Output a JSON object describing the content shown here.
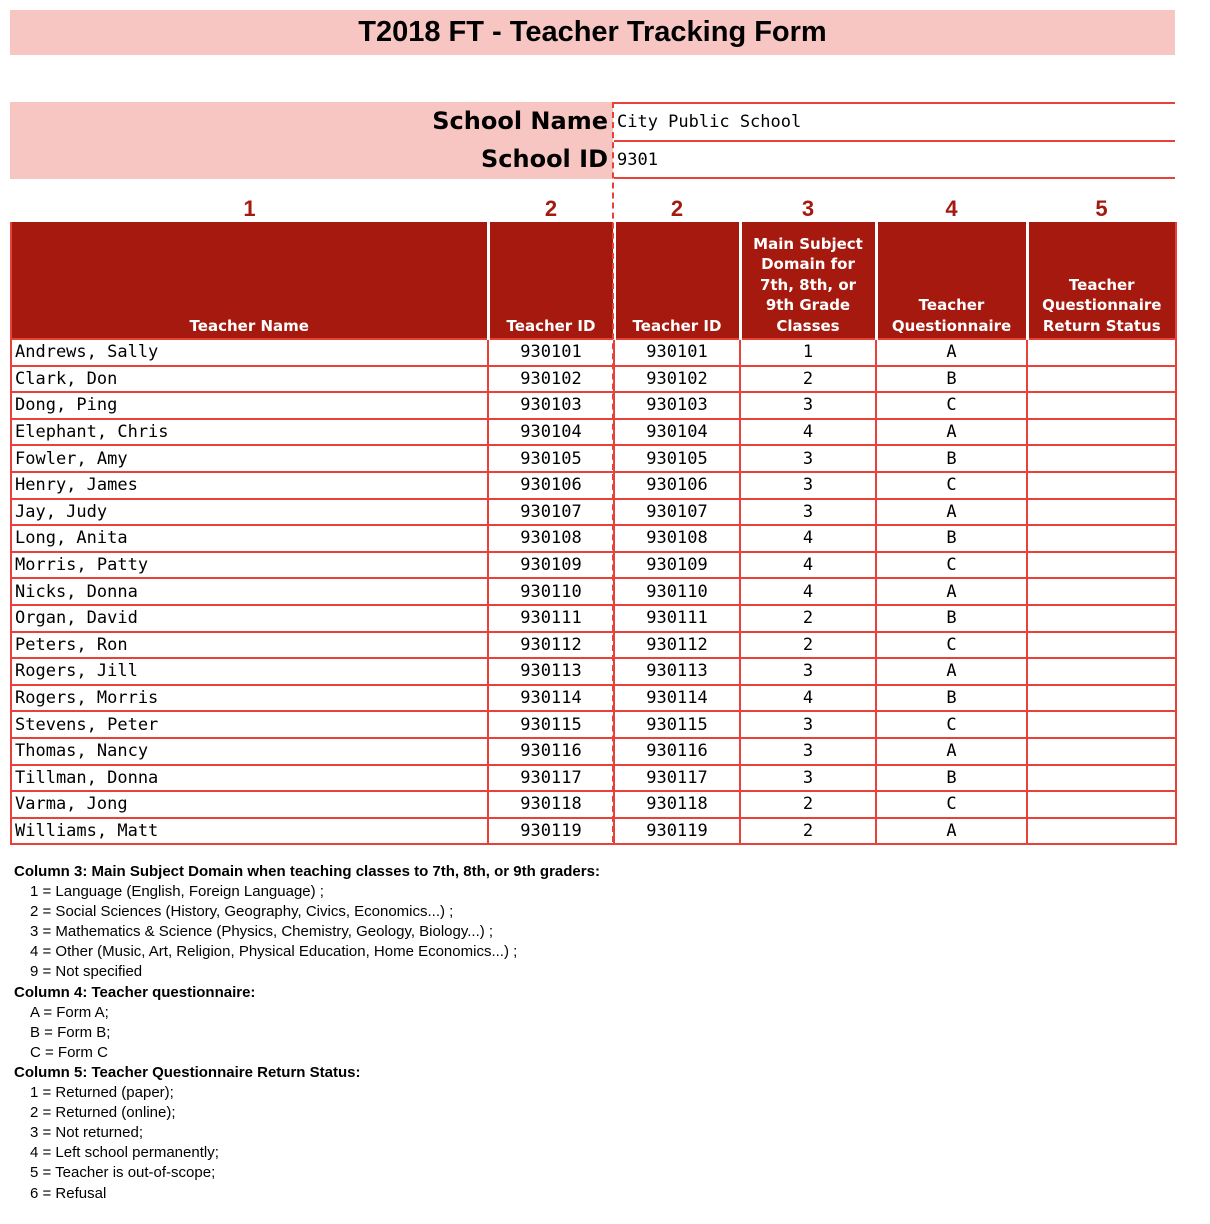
{
  "title": "T2018 FT - Teacher Tracking Form",
  "school": {
    "name_label": "School Name",
    "name_value": "City Public School",
    "id_label": "School ID",
    "id_value": "9301"
  },
  "column_numbers": [
    "1",
    "2",
    "2",
    "3",
    "4",
    "5"
  ],
  "headers": [
    "Teacher Name",
    "Teacher ID",
    "Teacher ID",
    "Main Subject Domain for 7th, 8th, or 9th Grade Classes",
    "Teacher Questionnaire",
    "Teacher Questionnaire Return Status"
  ],
  "rows": [
    [
      "Andrews, Sally",
      "930101",
      "930101",
      "1",
      "A",
      ""
    ],
    [
      "Clark, Don",
      "930102",
      "930102",
      "2",
      "B",
      ""
    ],
    [
      "Dong, Ping",
      "930103",
      "930103",
      "3",
      "C",
      ""
    ],
    [
      "Elephant, Chris",
      "930104",
      "930104",
      "4",
      "A",
      ""
    ],
    [
      "Fowler, Amy",
      "930105",
      "930105",
      "3",
      "B",
      ""
    ],
    [
      "Henry, James",
      "930106",
      "930106",
      "3",
      "C",
      ""
    ],
    [
      "Jay, Judy",
      "930107",
      "930107",
      "3",
      "A",
      ""
    ],
    [
      "Long, Anita",
      "930108",
      "930108",
      "4",
      "B",
      ""
    ],
    [
      "Morris, Patty",
      "930109",
      "930109",
      "4",
      "C",
      ""
    ],
    [
      "Nicks, Donna",
      "930110",
      "930110",
      "4",
      "A",
      ""
    ],
    [
      "Organ, David",
      "930111",
      "930111",
      "2",
      "B",
      ""
    ],
    [
      "Peters, Ron",
      "930112",
      "930112",
      "2",
      "C",
      ""
    ],
    [
      "Rogers, Jill",
      "930113",
      "930113",
      "3",
      "A",
      ""
    ],
    [
      "Rogers, Morris",
      "930114",
      "930114",
      "4",
      "B",
      ""
    ],
    [
      "Stevens, Peter",
      "930115",
      "930115",
      "3",
      "C",
      ""
    ],
    [
      "Thomas, Nancy",
      "930116",
      "930116",
      "3",
      "A",
      ""
    ],
    [
      "Tillman, Donna",
      "930117",
      "930117",
      "3",
      "B",
      ""
    ],
    [
      "Varma, Jong",
      "930118",
      "930118",
      "2",
      "C",
      ""
    ],
    [
      "Williams, Matt",
      "930119",
      "930119",
      "2",
      "A",
      ""
    ]
  ],
  "legend": [
    {
      "heading": "Column 3: Main Subject Domain when teaching classes to 7th, 8th, or 9th graders:",
      "items": [
        "1 = Language (English, Foreign Language) ;",
        "2 = Social Sciences (History, Geography, Civics, Economics...) ;",
        "3 = Mathematics & Science (Physics, Chemistry, Geology, Biology...) ;",
        "4 = Other (Music, Art, Religion, Physical Education, Home Economics...) ;",
        "9 = Not specified"
      ]
    },
    {
      "heading": "Column 4: Teacher questionnaire:",
      "items": [
        "A = Form A;",
        "B = Form B;",
        "C = Form C"
      ]
    },
    {
      "heading": "Column 5: Teacher Questionnaire Return Status:",
      "items": [
        "1 = Returned (paper);",
        "2 = Returned (online);",
        "3 = Not returned;",
        "4 = Left school permanently;",
        "5 = Teacher is out-of-scope;",
        "6 = Refusal"
      ]
    }
  ],
  "colors": {
    "header_bg": "#a6190f",
    "band_bg": "#f8c6c2",
    "border": "#e8413a"
  }
}
